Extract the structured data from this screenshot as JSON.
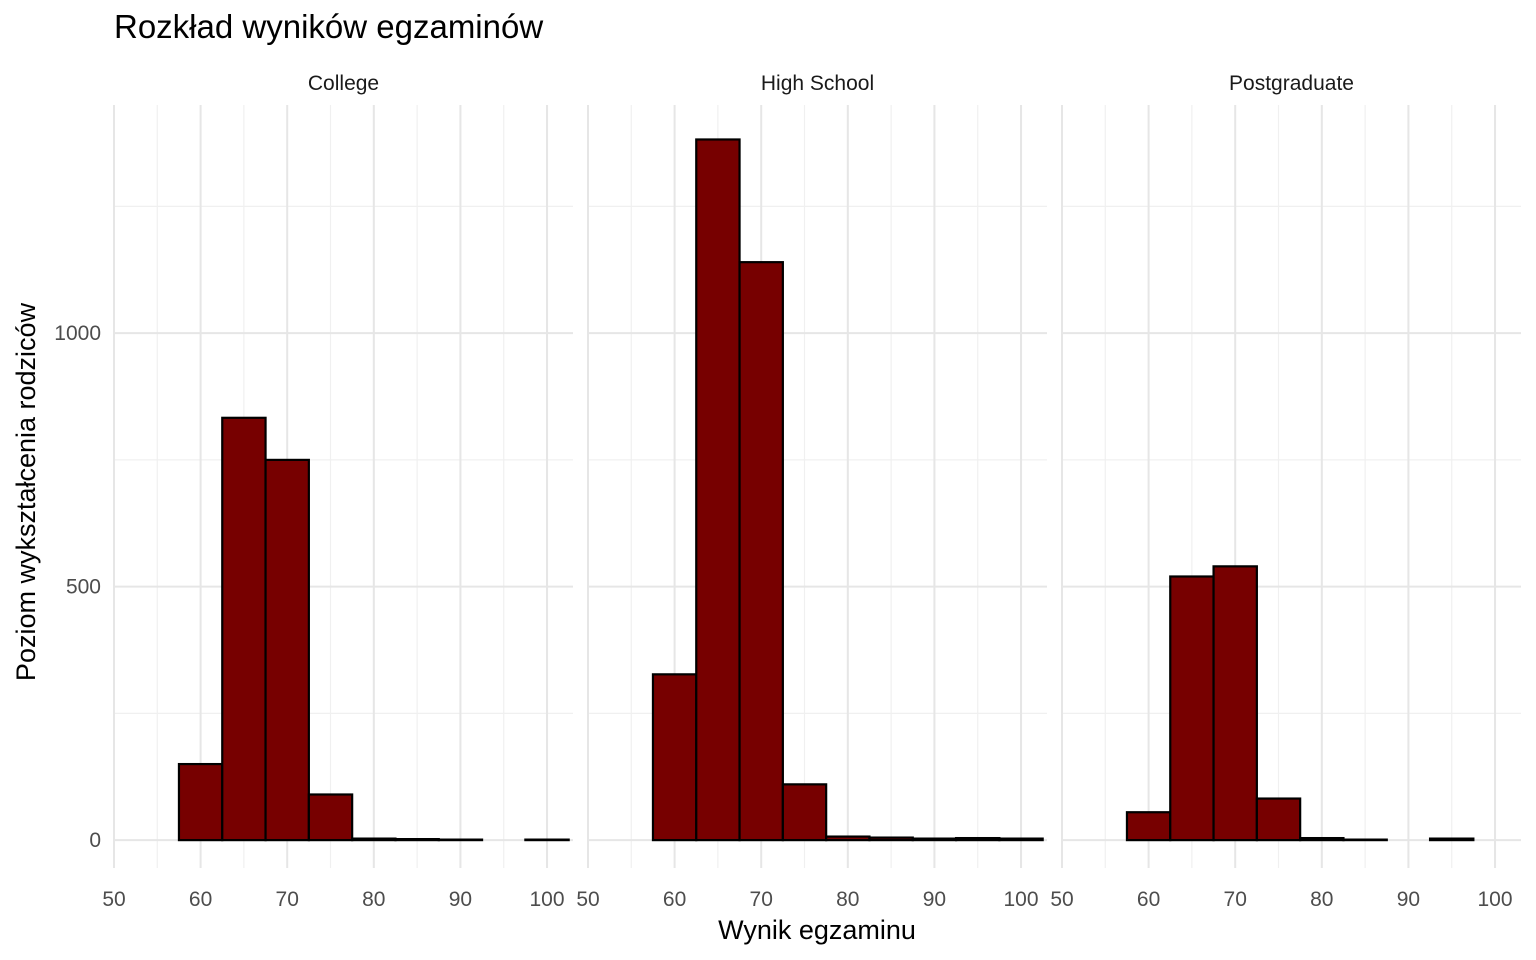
{
  "chart_data": {
    "type": "bar",
    "title": "Rozkład wyników egzaminów",
    "xlabel": "Wynik egzaminu",
    "ylabel": "Poziom wykształcenia rodziców",
    "xlim": [
      50,
      103
    ],
    "ylim": [
      -55,
      1450
    ],
    "x_ticks": [
      50,
      60,
      70,
      80,
      90,
      100
    ],
    "y_ticks": [
      0,
      500,
      1000
    ],
    "bin_width": 5,
    "bin_centers": [
      55,
      60,
      65,
      70,
      75,
      80,
      85,
      90,
      95,
      100
    ],
    "grid": true,
    "bar_fill": "#770000",
    "bar_stroke": "#000000",
    "panels": [
      {
        "name": "College",
        "values": [
          0,
          150,
          833,
          750,
          90,
          3,
          2,
          1,
          0,
          1
        ]
      },
      {
        "name": "High School",
        "values": [
          0,
          327,
          1382,
          1140,
          110,
          7,
          5,
          3,
          4,
          3
        ]
      },
      {
        "name": "Postgraduate",
        "values": [
          0,
          55,
          520,
          540,
          82,
          4,
          1,
          0,
          3,
          0
        ]
      }
    ]
  }
}
